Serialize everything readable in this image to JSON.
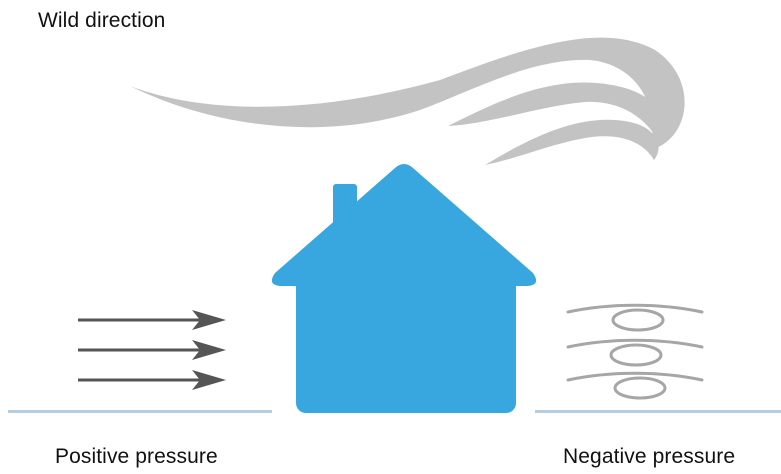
{
  "labels": {
    "wind_direction": "Wild direction",
    "positive_pressure": "Positive pressure",
    "negative_pressure": "Negative pressure"
  },
  "colors": {
    "house": "#39a7df",
    "ground": "#b7cde2",
    "wind": "#c3c3c3",
    "arrows": "#555555",
    "eddies": "#a6a6a6"
  },
  "icons": [
    "wind-gust-icon",
    "house-icon",
    "inflow-arrow-icon",
    "eddy-icon"
  ]
}
